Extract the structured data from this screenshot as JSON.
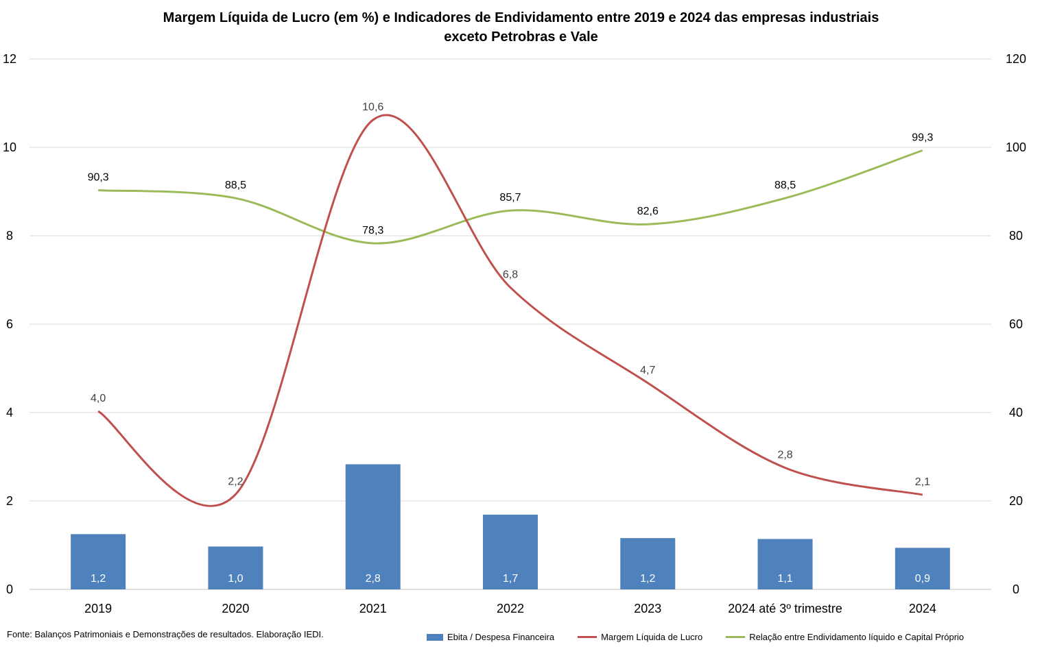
{
  "title_line1": "Margem Líquida de Lucro (em %) e Indicadores de Endividamento entre 2019 e 2024 das empresas industriais",
  "title_line2": "exceto Petrobras e Vale",
  "source": "Fonte: Balanços Patrimoniais e Demonstrações de resultados. Elaboração IEDI.",
  "colors": {
    "bar": "#4f81bd",
    "red_line": "#c0504d",
    "green_line": "#9bbb59",
    "grid": "#d9d9d9"
  },
  "chart_data": {
    "type": "bar",
    "categories": [
      "2019",
      "2020",
      "2021",
      "2022",
      "2023",
      "2024 até 3º trimestre",
      "2024"
    ],
    "y_left": {
      "min": 0,
      "max": 12,
      "ticks": [
        "0",
        "2",
        "4",
        "6",
        "8",
        "10",
        "12"
      ]
    },
    "y_right": {
      "min": 0,
      "max": 120,
      "ticks": [
        "0",
        "20",
        "40",
        "60",
        "80",
        "100",
        "120"
      ]
    },
    "grid": true,
    "legend_position": "bottom",
    "series": [
      {
        "name": "Ebita / Despesa Financeira",
        "type": "bar",
        "axis": "left",
        "values": [
          1.25,
          0.97,
          2.83,
          1.69,
          1.16,
          1.14,
          0.94
        ],
        "labels": [
          "1,2",
          "1,0",
          "2,8",
          "1,7",
          "1,2",
          "1,1",
          "0,9"
        ]
      },
      {
        "name": "Margem Líquida de Lucro",
        "type": "line",
        "axis": "left",
        "values": [
          4.03,
          2.15,
          10.62,
          6.83,
          4.67,
          2.75,
          2.14
        ],
        "labels": [
          "4,0",
          "2,2",
          "10,6",
          "6,8",
          "4,7",
          "2,8",
          "2,1"
        ]
      },
      {
        "name": "Relação entre Endividamento líquido e Capital Próprio",
        "type": "line",
        "axis": "right",
        "values": [
          90.3,
          88.5,
          78.3,
          85.7,
          82.6,
          88.5,
          99.3
        ],
        "labels": [
          "90,3",
          "88,5",
          "78,3",
          "85,7",
          "82,6",
          "88,5",
          "99,3"
        ]
      }
    ]
  }
}
